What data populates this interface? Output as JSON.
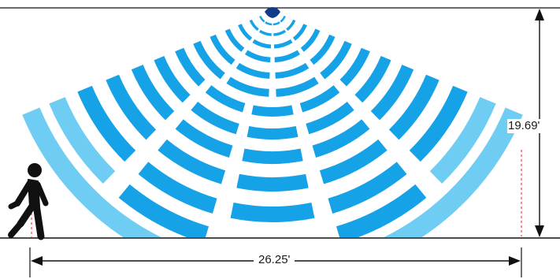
{
  "diagram": {
    "height_label": "19.69'",
    "width_label": "26.25'",
    "sensor_icon": "motion-sensor-icon",
    "person_icon": "walking-person-icon",
    "colors": {
      "wave_inner": "#16a2e6",
      "wave_outer": "#6fccf2",
      "sensor": "#123a8c",
      "lines": "#111111",
      "person": "#111111",
      "marker": "#e02020"
    }
  }
}
